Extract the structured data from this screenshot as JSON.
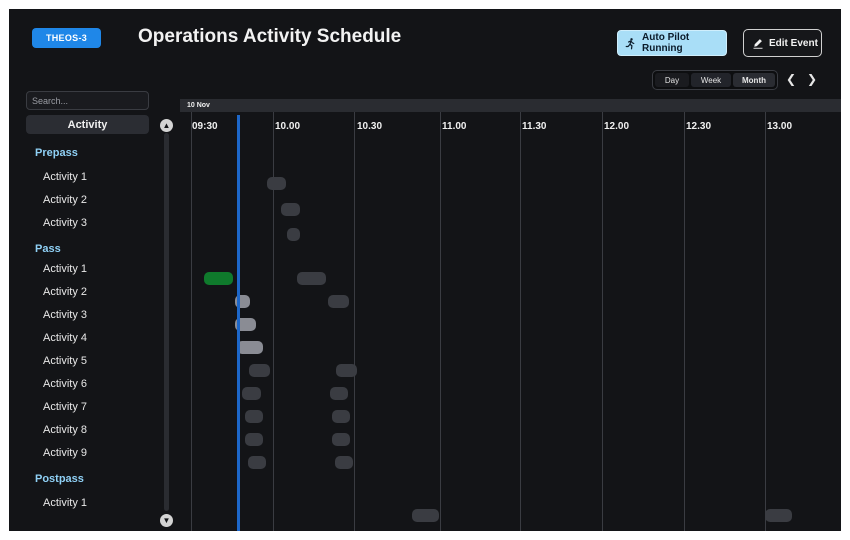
{
  "header": {
    "badge": "THEOS-3",
    "title": "Operations Activity Schedule",
    "autopilot_label": "Auto Pilot Running",
    "autopilot_icon": "running-person-icon",
    "edit_label": "Edit Event",
    "edit_icon": "edit-pen-icon"
  },
  "view_toggle": {
    "options": [
      "Day",
      "Week",
      "Month"
    ],
    "selected": "Month",
    "prev_icon": "chevron-left-icon",
    "next_icon": "chevron-right-icon"
  },
  "sidebar": {
    "search_placeholder": "Search...",
    "column_header": "Activity",
    "groups": [
      {
        "name": "Prepass",
        "items": [
          "Activity 1",
          "Activity 2",
          "Activity 3"
        ]
      },
      {
        "name": "Pass",
        "items": [
          "Activity 1",
          "Activity 2",
          "Activity 3",
          "Activity 4",
          "Activity 5",
          "Activity 6",
          "Activity 7",
          "Activity 8",
          "Activity 9"
        ]
      },
      {
        "name": "Postpass",
        "items": [
          "Activity 1"
        ]
      }
    ]
  },
  "timeline": {
    "date": "10 Nov",
    "ticks": [
      "09:30",
      "10.00",
      "10.30",
      "11.00",
      "11.30",
      "12.00",
      "12.30",
      "13.00"
    ]
  },
  "colors": {
    "accent": "#1f87e8",
    "autopilot_bg": "#a9def7",
    "group_label": "#8fd0f5",
    "event_default": "#3a3c42",
    "event_active": "#0f7a2c",
    "event_highlight": "#8a8c94",
    "now_line": "#1d67c9"
  }
}
